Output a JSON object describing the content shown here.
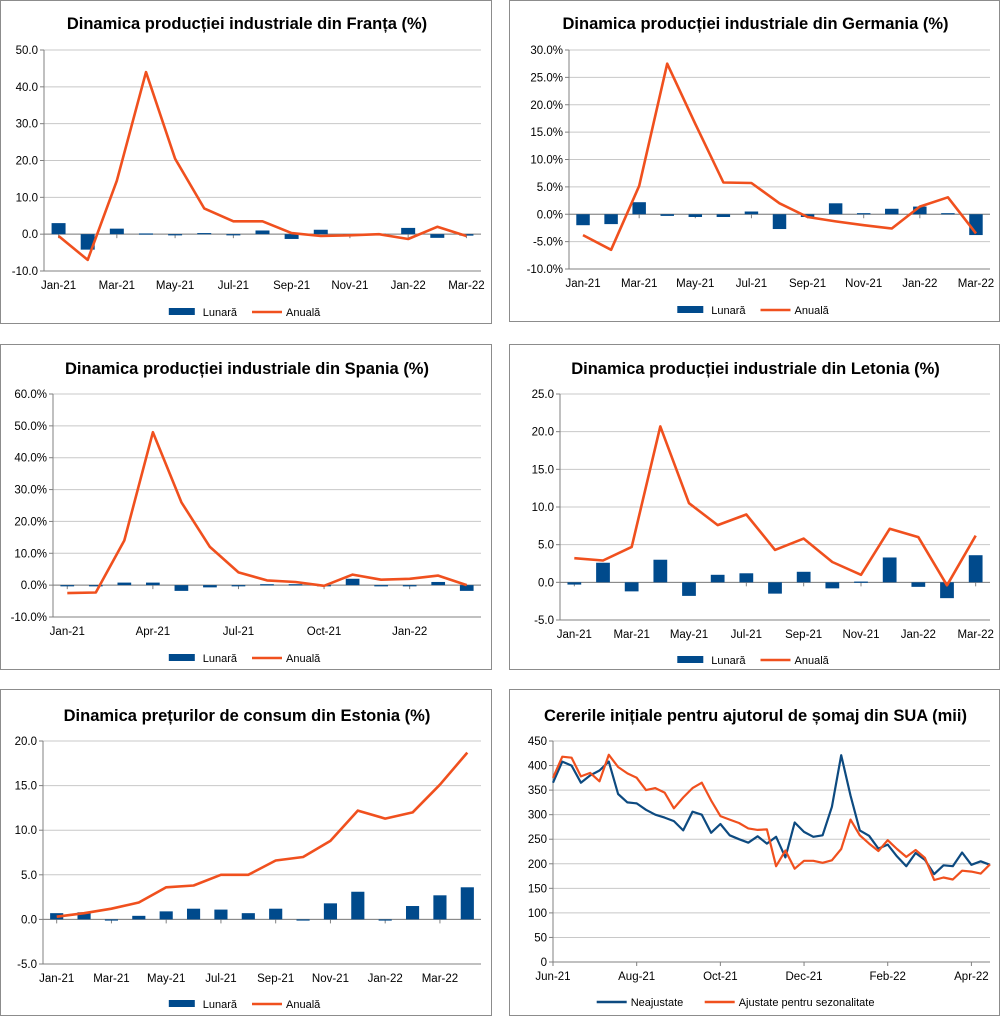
{
  "colors": {
    "bar": "#004a8c",
    "line": "#f0501e",
    "navy_line": "#0d4a80",
    "grid": "#c8c8c8",
    "axis": "#808080"
  },
  "chart_data": [
    {
      "type": "bar+line",
      "title": "Dinamica producției industriale din Franța (%)",
      "ylim": [
        -10,
        50
      ],
      "ystep": 10,
      "ydec": 1,
      "pct": false,
      "x_ticks": [
        "Jan-21",
        "Mar-21",
        "May-21",
        "Jul-21",
        "Sep-21",
        "Nov-21",
        "Jan-22",
        "Mar-22"
      ],
      "tick_every": 2,
      "series": [
        {
          "name": "Lunară",
          "kind": "bar",
          "values": [
            3.0,
            -4.2,
            1.5,
            0.2,
            -0.3,
            0.3,
            -0.2,
            1.0,
            -1.3,
            1.2,
            -0.3,
            0.1,
            1.7,
            -1.0,
            -0.4
          ]
        },
        {
          "name": "Anuală",
          "kind": "line",
          "values": [
            -0.5,
            -7.0,
            14.5,
            44.0,
            20.5,
            7.0,
            3.5,
            3.5,
            0.3,
            -0.5,
            -0.3,
            0.0,
            -1.3,
            2.0,
            -0.5
          ]
        }
      ]
    },
    {
      "type": "bar+line",
      "title": "Dinamica producției industriale din Germania (%)",
      "ylim": [
        -10,
        30
      ],
      "ystep": 5,
      "ydec": 1,
      "pct": true,
      "x_ticks": [
        "Jan-21",
        "Mar-21",
        "May-21",
        "Jul-21",
        "Sep-21",
        "Nov-21",
        "Jan-22",
        "Mar-22"
      ],
      "tick_every": 2,
      "series": [
        {
          "name": "Lunară",
          "kind": "bar",
          "values": [
            -2.0,
            -1.8,
            2.2,
            -0.3,
            -0.5,
            -0.5,
            0.5,
            -2.7,
            -0.5,
            2.0,
            0.2,
            1.0,
            1.4,
            0.2,
            -3.8
          ]
        },
        {
          "name": "Anuală",
          "kind": "line",
          "values": [
            -3.8,
            -6.5,
            5.2,
            27.5,
            16.5,
            5.8,
            5.7,
            2.0,
            -0.5,
            -1.3,
            -2.0,
            -2.6,
            1.4,
            3.1,
            -3.5
          ]
        }
      ]
    },
    {
      "type": "bar+line",
      "title": "Dinamica producției industriale din Spania (%)",
      "ylim": [
        -10,
        60
      ],
      "ystep": 10,
      "ydec": 1,
      "pct": true,
      "x_ticks": [
        "Jan-21",
        "Apr-21",
        "Jul-21",
        "Oct-21",
        "Jan-22"
      ],
      "tick_every": 3,
      "series": [
        {
          "name": "Lunară",
          "kind": "bar",
          "values": [
            -0.3,
            0.0,
            0.8,
            0.8,
            -1.8,
            -0.7,
            -0.2,
            0.3,
            0.3,
            0.0,
            2.0,
            0.0,
            -0.2,
            1.0,
            -1.8
          ]
        },
        {
          "name": "Anuală",
          "kind": "line",
          "values": [
            -2.5,
            -2.3,
            14.0,
            48.0,
            26.0,
            12.0,
            4.0,
            1.5,
            1.0,
            -0.2,
            3.3,
            1.7,
            2.0,
            3.0,
            0.0
          ]
        }
      ]
    },
    {
      "type": "bar+line",
      "title": "Dinamica producției industriale din Letonia (%)",
      "ylim": [
        -5,
        25
      ],
      "ystep": 5,
      "ydec": 1,
      "pct": false,
      "x_ticks": [
        "Jan-21",
        "Mar-21",
        "May-21",
        "Jul-21",
        "Sep-21",
        "Nov-21",
        "Jan-22",
        "Mar-22"
      ],
      "tick_every": 2,
      "series": [
        {
          "name": "Lunară",
          "kind": "bar",
          "values": [
            -0.3,
            2.6,
            -1.2,
            3.0,
            -1.8,
            1.0,
            1.2,
            -1.5,
            1.4,
            -0.8,
            0.1,
            3.3,
            -0.6,
            -2.1,
            3.6
          ]
        },
        {
          "name": "Anuală",
          "kind": "line",
          "values": [
            3.2,
            2.9,
            4.7,
            20.7,
            10.5,
            7.6,
            9.0,
            4.3,
            5.8,
            2.7,
            1.0,
            7.1,
            6.0,
            -0.4,
            6.2
          ]
        }
      ]
    },
    {
      "type": "bar+line",
      "title": "Dinamica prețurilor de consum din Estonia (%)",
      "ylim": [
        -5,
        20
      ],
      "ystep": 5,
      "ydec": 1,
      "pct": false,
      "x_ticks": [
        "Jan-21",
        "Mar-21",
        "May-21",
        "Jul-21",
        "Sep-21",
        "Nov-21",
        "Jan-22",
        "Mar-22"
      ],
      "tick_every": 2,
      "series": [
        {
          "name": "Lunară",
          "kind": "bar",
          "values": [
            0.7,
            0.8,
            -0.1,
            0.4,
            0.9,
            1.2,
            1.1,
            0.7,
            1.2,
            -0.1,
            1.8,
            3.1,
            -0.1,
            1.5,
            2.7,
            3.6
          ]
        },
        {
          "name": "Anuală",
          "kind": "line",
          "values": [
            0.3,
            0.7,
            1.2,
            1.9,
            3.6,
            3.8,
            5.0,
            5.0,
            6.6,
            7.0,
            8.8,
            12.2,
            11.3,
            12.0,
            15.1,
            18.7
          ]
        }
      ]
    },
    {
      "type": "line",
      "title": "Cererile inițiale pentru ajutorul de șomaj din SUA (mii)",
      "ylim": [
        0,
        450
      ],
      "ystep": 50,
      "ydec": 0,
      "pct": false,
      "x_ticks": [
        "Jun-21",
        "Aug-21",
        "Oct-21",
        "Dec-21",
        "Feb-22",
        "Apr-22"
      ],
      "tick_every": 9,
      "series": [
        {
          "name": "Neajustate",
          "kind": "line",
          "values": [
            365,
            408,
            400,
            365,
            380,
            390,
            408,
            342,
            325,
            323,
            310,
            300,
            294,
            287,
            268,
            306,
            300,
            263,
            281,
            258,
            250,
            243,
            256,
            241,
            255,
            213,
            284,
            265,
            255,
            258,
            316,
            421,
            339,
            268,
            257,
            231,
            239,
            215,
            195,
            222,
            208,
            179,
            197,
            195,
            223,
            198,
            205,
            198
          ]
        },
        {
          "name": "Ajustate pentru sezonalitate",
          "kind": "line",
          "values": [
            375,
            418,
            416,
            378,
            385,
            368,
            422,
            397,
            384,
            375,
            350,
            354,
            345,
            313,
            335,
            354,
            365,
            329,
            297,
            290,
            283,
            272,
            269,
            270,
            195,
            227,
            190,
            206,
            206,
            202,
            207,
            230,
            290,
            258,
            241,
            226,
            248,
            230,
            214,
            228,
            212,
            167,
            172,
            168,
            186,
            184,
            180,
            199
          ]
        }
      ]
    }
  ]
}
